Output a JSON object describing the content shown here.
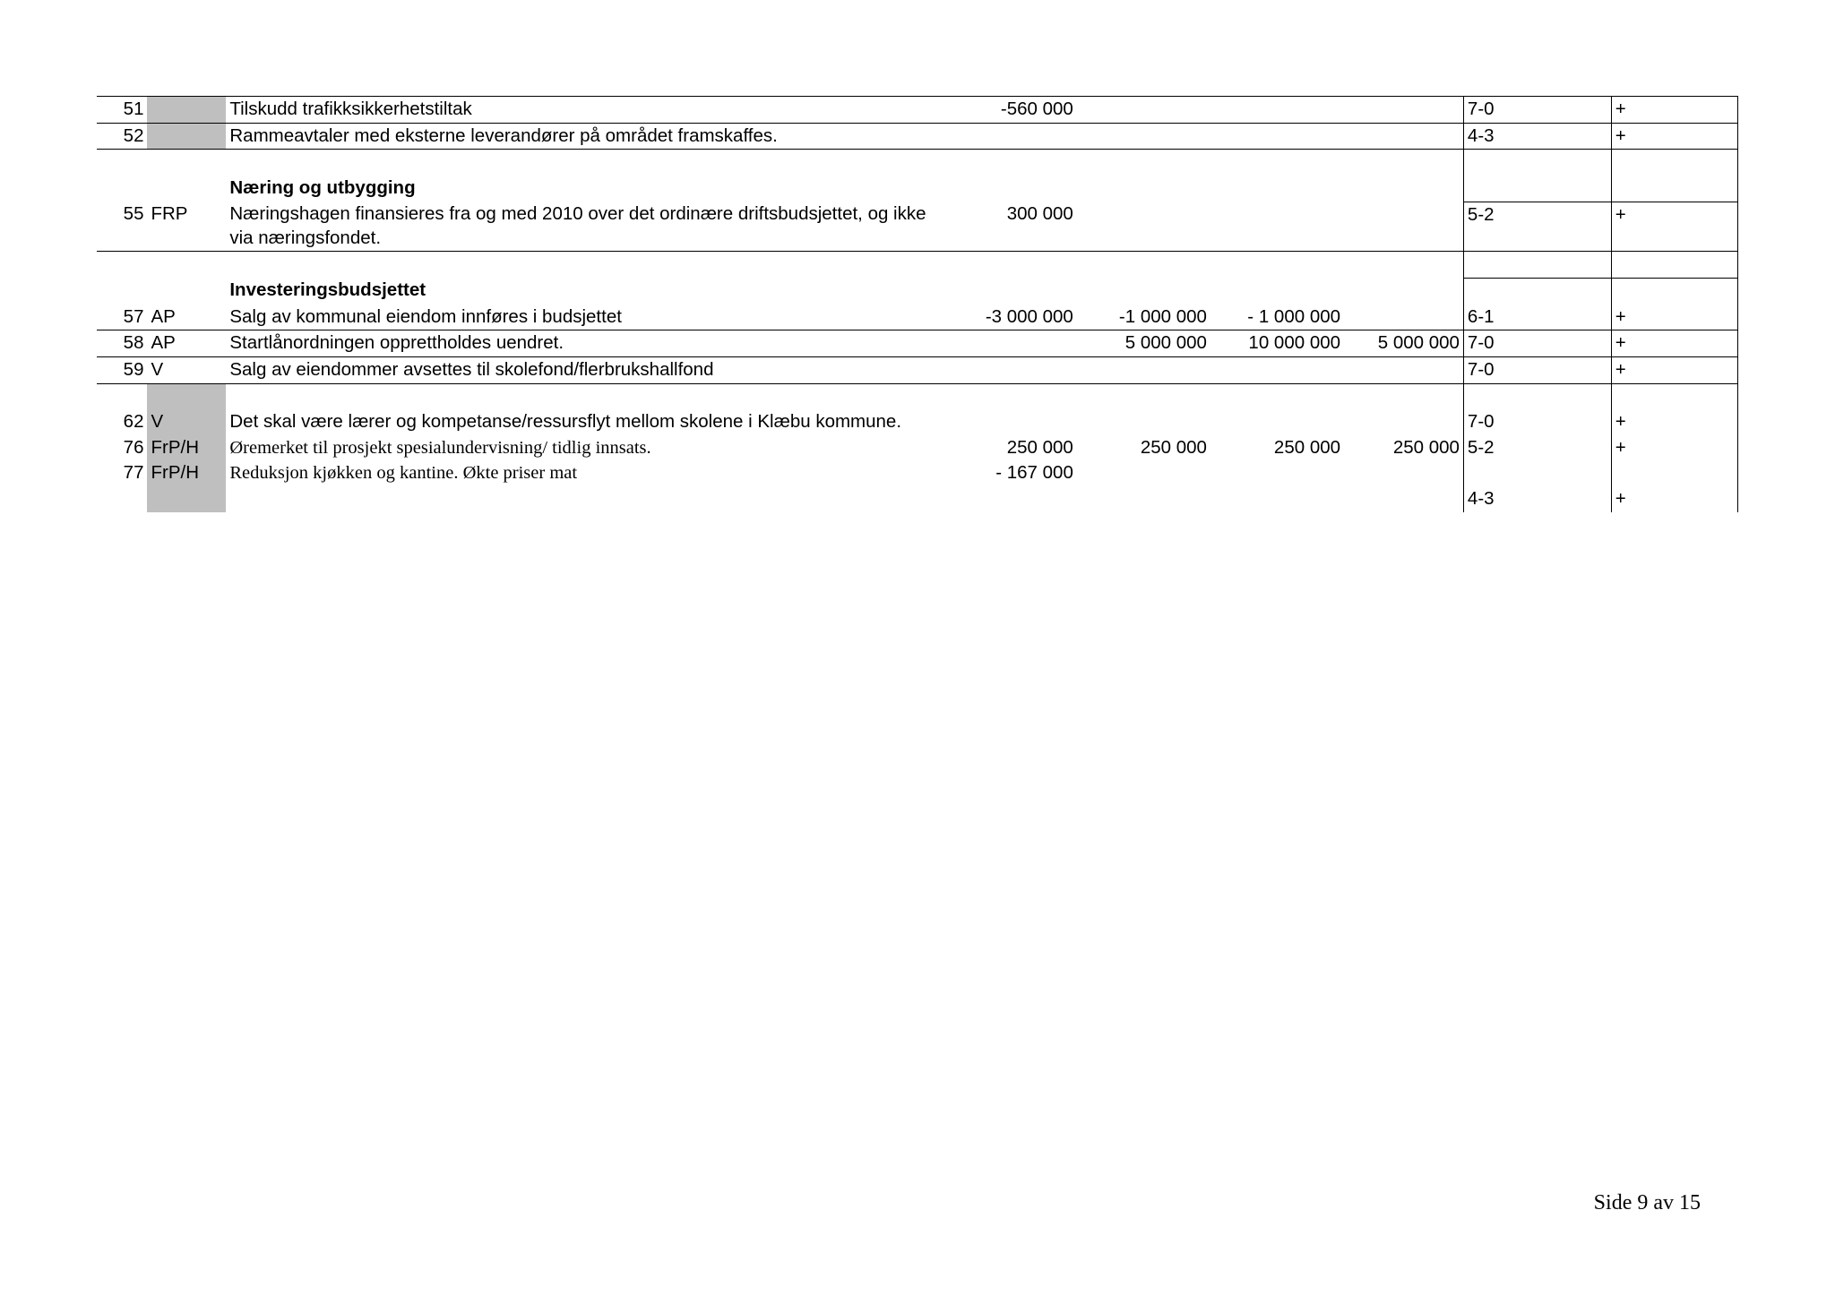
{
  "colors": {
    "shade": "#bfbfbf",
    "border": "#000000",
    "text": "#000000",
    "bg": "#ffffff"
  },
  "rows": [
    {
      "num": "51",
      "party": "",
      "partyShade": true,
      "desc": "Tilskudd trafikksikkerhetstiltak",
      "v1": "-560 000",
      "v2": "",
      "v3": "",
      "v4": "",
      "score": "7-0",
      "plus": "+",
      "topBorder": true,
      "bottomBorder": true
    },
    {
      "num": "52",
      "party": "",
      "partyShade": true,
      "desc": "Rammeavtaler med eksterne leverandører på området framskaffes.",
      "v1": "",
      "v2": "",
      "v3": "",
      "v4": "",
      "score": "4-3",
      "plus": "+",
      "bottomBorder": true
    },
    {
      "spacer": true,
      "scoreBorders": true
    },
    {
      "num": "",
      "party": "",
      "desc": "Næring og utbygging",
      "bold": true,
      "v1": "",
      "v2": "",
      "v3": "",
      "v4": "",
      "score": "",
      "plus": "",
      "scoreBorders": true,
      "bottomScoreBorder": true
    },
    {
      "num": "55",
      "party": "FRP",
      "desc": "Næringshagen finansieres fra og med 2010 over det ordinære driftsbudsjettet, og ikke via næringsfondet.",
      "v1": "300 000",
      "v2": "",
      "v3": "",
      "v4": "",
      "score": "5-2",
      "plus": "+",
      "bottomBorder": true,
      "scoreBorders": true
    },
    {
      "spacer": true,
      "scoreBorders": true,
      "bottomScoreBorder": true
    },
    {
      "num": "",
      "party": "",
      "desc": "Investeringsbudsjettet",
      "bold": true,
      "v1": "",
      "v2": "",
      "v3": "",
      "v4": "",
      "score": "",
      "plus": "",
      "scoreBorders": true
    },
    {
      "num": "57",
      "party": "AP",
      "desc": "Salg av kommunal eiendom innføres i budsjettet",
      "v1": "-3 000 000",
      "v2": "-1 000 000",
      "v3": "- 1 000 000",
      "v4": "",
      "score": "6-1",
      "plus": "+",
      "bottomBorder": true,
      "scoreBorders": true
    },
    {
      "num": "58",
      "party": "AP",
      "desc": "Startlånordningen opprettholdes uendret.",
      "v1": "",
      "v2": "5 000 000",
      "v3": "10 000 000",
      "v4": "5 000 000",
      "score": "7-0",
      "plus": "+",
      "bottomBorder": true,
      "scoreBorders": true
    },
    {
      "num": "59",
      "party": "V",
      "desc": "Salg av eiendommer avsettes til skolefond/flerbrukshallfond",
      "v1": "",
      "v2": "",
      "v3": "",
      "v4": "",
      "score": "7-0",
      "plus": "+",
      "bottomBorder": true,
      "scoreBorders": true
    },
    {
      "spacer": true,
      "scoreBorders": true,
      "partyShade": true
    },
    {
      "num": "62",
      "party": "V",
      "partyShade": true,
      "desc": "Det skal være lærer og kompetanse/ressursflyt mellom skolene i Klæbu kommune.",
      "v1": "",
      "v2": "",
      "v3": "",
      "v4": "",
      "score": "7-0",
      "plus": "+",
      "scoreBorders": true
    },
    {
      "num": "76",
      "party": "FrP/H",
      "partyShade": true,
      "desc": "Øremerket til prosjekt spesialundervisning/ tidlig innsats.",
      "serif": true,
      "v1": "250 000",
      "v2": "250 000",
      "v3": "250 000",
      "v4": "250 000",
      "score": "5-2",
      "plus": "+",
      "scoreBorders": true
    },
    {
      "num": "77",
      "party": "FrP/H",
      "partyShade": true,
      "desc": "Reduksjon kjøkken og kantine. Økte priser mat",
      "serif": true,
      "v1": "- 167 000",
      "v2": "",
      "v3": "",
      "v4": "",
      "score": "",
      "plus": "",
      "scoreBorders": true
    },
    {
      "num": "",
      "party": "",
      "partyShade": true,
      "desc": "",
      "v1": "",
      "v2": "",
      "v3": "",
      "v4": "",
      "score": "4-3",
      "plus": "+",
      "scoreBorders": true
    }
  ],
  "footer": "Side 9 av 15"
}
